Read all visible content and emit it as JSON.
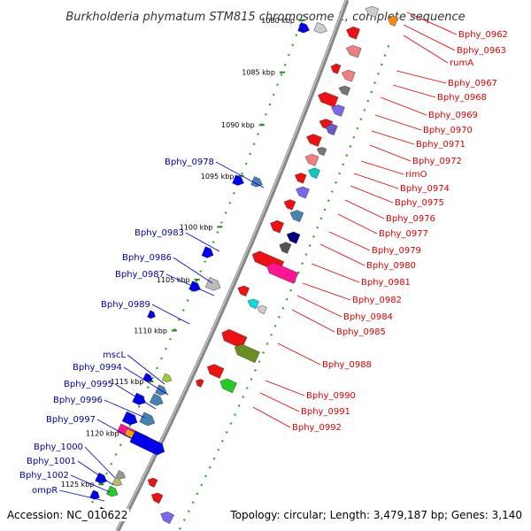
{
  "title": "Burkholderia phymatum STM815 chromosome 1, complete sequence",
  "footer": {
    "accession": "Accession: NC_010622",
    "summary": "Topology: circular; Length: 3,479,187 bp; Genes: 3,140"
  },
  "colors": {
    "backbone": "#888888",
    "tick": "#228822",
    "dot": "#22aa22",
    "left_label": "#0000aa",
    "right_label": "#dd0000",
    "cds_forward": "#0000ee",
    "cds_reverse": "#ee0000"
  },
  "kbp_ticks": [
    "1080 kbp",
    "1085 kbp",
    "1090 kbp",
    "1095 kbp",
    "1100 kbp",
    "1105 kbp",
    "1110 kbp",
    "1115 kbp",
    "1120 kbp",
    "1125 kbp"
  ],
  "left_labels": [
    "Bphy_0978",
    "Bphy_0983",
    "Bphy_0986",
    "Bphy_0987",
    "Bphy_0989",
    "mscL",
    "Bphy_0994",
    "Bphy_0995",
    "Bphy_0996",
    "Bphy_0997",
    "Bphy_1000",
    "Bphy_1001",
    "Bphy_1002",
    "ompR"
  ],
  "right_labels": [
    "Bphy_0962",
    "Bphy_0963",
    "rumA",
    "Bphy_0967",
    "Bphy_0968",
    "Bphy_0969",
    "Bphy_0970",
    "Bphy_0971",
    "Bphy_0972",
    "rimO",
    "Bphy_0974",
    "Bphy_0975",
    "Bphy_0976",
    "Bphy_0977",
    "Bphy_0979",
    "Bphy_0980",
    "Bphy_0981",
    "Bphy_0982",
    "Bphy_0984",
    "Bphy_0985",
    "Bphy_0988",
    "Bphy_0990",
    "Bphy_0991",
    "Bphy_0992"
  ]
}
